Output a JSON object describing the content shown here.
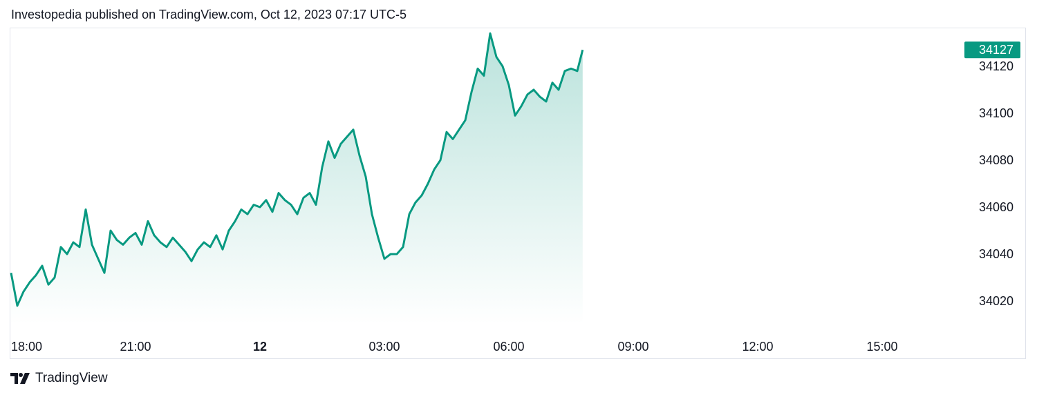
{
  "header": {
    "published_text": "Investopedia published on TradingView.com, Oct 12, 2023 07:17 UTC-5"
  },
  "footer": {
    "brand": "TradingView",
    "logo_icon": "tradingview-logo-icon"
  },
  "colors": {
    "line": "#089981",
    "badge": "#089981",
    "fill_top": "#089981",
    "border": "#e0e3eb"
  },
  "chart_data": {
    "type": "area",
    "x_ticks": [
      {
        "label": "18:00",
        "hours": 0,
        "bold": false
      },
      {
        "label": "21:00",
        "hours": 3,
        "bold": false
      },
      {
        "label": "12",
        "hours": 6,
        "bold": true
      },
      {
        "label": "03:00",
        "hours": 9,
        "bold": false
      },
      {
        "label": "06:00",
        "hours": 12,
        "bold": false
      },
      {
        "label": "09:00",
        "hours": 15,
        "bold": false
      },
      {
        "label": "12:00",
        "hours": 18,
        "bold": false
      },
      {
        "label": "15:00",
        "hours": 21,
        "bold": false
      }
    ],
    "y_ticks": [
      34020,
      34040,
      34060,
      34080,
      34100,
      34120
    ],
    "ylim": [
      34010,
      34135
    ],
    "last_price": "34127",
    "last_value": 34127,
    "series": [
      {
        "x": [
          0.0,
          0.15,
          0.3,
          0.45,
          0.6,
          0.75,
          0.9,
          1.05,
          1.2,
          1.35,
          1.5,
          1.65,
          1.8,
          1.95,
          2.1,
          2.25,
          2.4,
          2.55,
          2.7,
          2.85,
          3.0,
          3.15,
          3.3,
          3.45,
          3.6,
          3.75,
          3.9,
          4.05,
          4.2,
          4.35,
          4.5,
          4.65,
          4.8,
          4.95,
          5.1,
          5.25,
          5.4,
          5.55,
          5.7,
          5.85,
          6.0,
          6.15,
          6.3,
          6.45,
          6.6,
          6.75,
          6.9,
          7.05,
          7.2,
          7.35,
          7.5,
          7.65,
          7.8,
          7.95,
          8.1,
          8.25,
          8.4,
          8.55,
          8.7,
          8.85,
          9.0,
          9.15,
          9.3,
          9.45,
          9.6,
          9.75,
          9.9,
          10.05,
          10.2,
          10.35,
          10.5,
          10.65,
          10.8,
          10.95,
          11.1,
          11.25,
          11.4,
          11.55,
          11.7,
          11.85,
          12.0,
          12.15,
          12.3,
          12.45,
          12.6,
          12.75,
          12.9,
          13.05,
          13.2,
          13.35,
          13.5,
          13.65,
          13.78
        ],
        "y": [
          34032,
          34018,
          34024,
          34028,
          34031,
          34035,
          34027,
          34030,
          34043,
          34040,
          34045,
          34043,
          34059,
          34044,
          34038,
          34032,
          34050,
          34046,
          34044,
          34047,
          34049,
          34044,
          34054,
          34048,
          34045,
          34043,
          34047,
          34044,
          34041,
          34037,
          34042,
          34045,
          34043,
          34048,
          34042,
          34050,
          34054,
          34059,
          34057,
          34061,
          34060,
          34063,
          34058,
          34066,
          34063,
          34061,
          34057,
          34064,
          34066,
          34061,
          34077,
          34088,
          34081,
          34087,
          34090,
          34093,
          34082,
          34073,
          34057,
          34047,
          34038,
          34040,
          34040,
          34043,
          34057,
          34062,
          34065,
          34070,
          34076,
          34080,
          34092,
          34089,
          34093,
          34097,
          34109,
          34119,
          34116,
          34134,
          34124,
          34120,
          34112,
          34099,
          34103,
          34108,
          34110,
          34107,
          34105,
          34113,
          34110,
          34118,
          34119,
          34118,
          34127
        ]
      }
    ]
  }
}
